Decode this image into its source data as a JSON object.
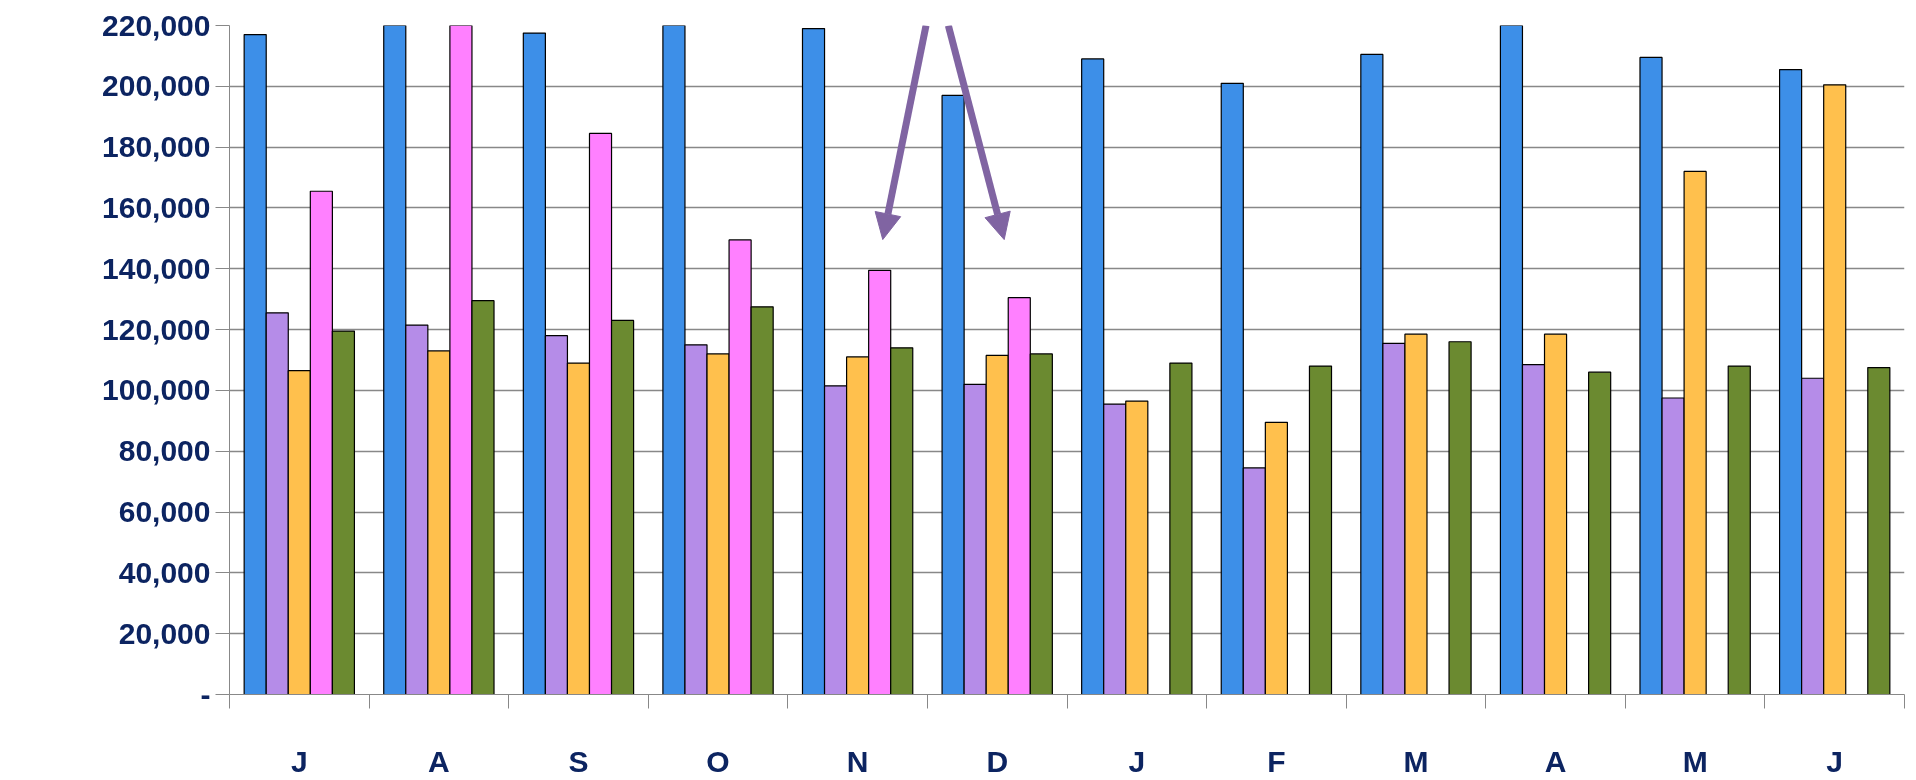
{
  "chart_data": {
    "type": "bar",
    "categories": [
      "J",
      "A",
      "S",
      "O",
      "N",
      "D",
      "J",
      "F",
      "M",
      "A",
      "M",
      "J"
    ],
    "series": [
      {
        "color": "#3d8fe8",
        "values": [
          217000,
          220000,
          217500,
          220000,
          219000,
          197000,
          209000,
          201000,
          210500,
          220000,
          209500,
          205500
        ]
      },
      {
        "color": "#b58ce8",
        "values": [
          125500,
          121500,
          118000,
          115000,
          101500,
          102000,
          95500,
          74500,
          115500,
          108500,
          97500,
          104000
        ]
      },
      {
        "color": "#ffc04d",
        "values": [
          106500,
          113000,
          109000,
          112000,
          111000,
          111500,
          96500,
          89500,
          118500,
          118500,
          172000,
          200500
        ]
      },
      {
        "color": "#ff80ff",
        "values": [
          165500,
          220000,
          184500,
          149500,
          139500,
          130500,
          null,
          null,
          null,
          null,
          null,
          null
        ]
      },
      {
        "color": "#6b8a30",
        "values": [
          119500,
          129500,
          123000,
          127500,
          114000,
          112000,
          109000,
          108000,
          116000,
          106000,
          108000,
          107500
        ]
      }
    ],
    "ylim": [
      0,
      220000
    ],
    "yticks": [
      {
        "value": 0,
        "label": "-"
      },
      {
        "value": 20000,
        "label": "20,000"
      },
      {
        "value": 40000,
        "label": "40,000"
      },
      {
        "value": 60000,
        "label": "60,000"
      },
      {
        "value": 80000,
        "label": "80,000"
      },
      {
        "value": 100000,
        "label": "100,000"
      },
      {
        "value": 120000,
        "label": "120,000"
      },
      {
        "value": 140000,
        "label": "140,000"
      },
      {
        "value": 160000,
        "label": "160,000"
      },
      {
        "value": 180000,
        "label": "180,000"
      },
      {
        "value": 200000,
        "label": "200,000"
      },
      {
        "value": 220000,
        "label": "220,000"
      }
    ],
    "grid": "y"
  }
}
